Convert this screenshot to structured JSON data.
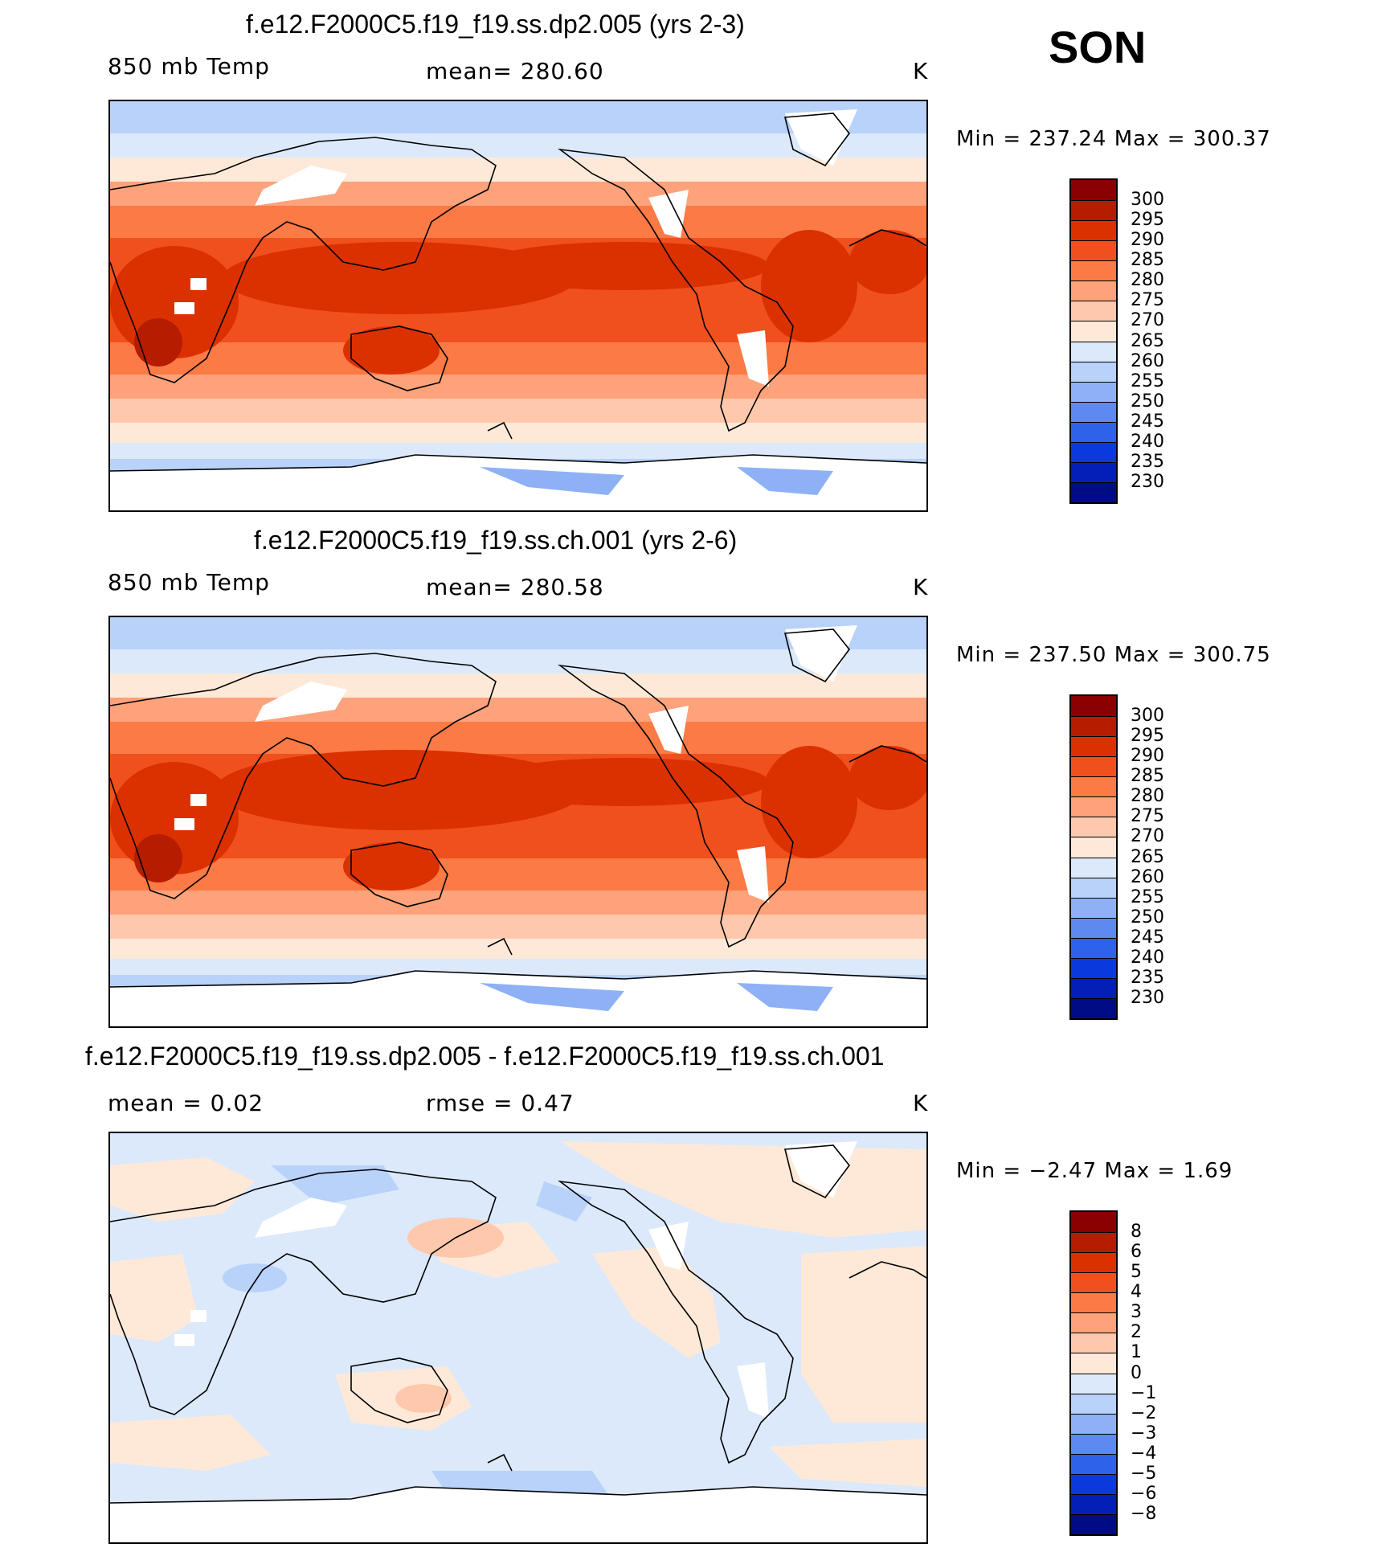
{
  "season": "SON",
  "panels": [
    {
      "title": "f.e12.F2000C5.f19_f19.ss.dp2.005 (yrs 2-3)",
      "left_label": "850 mb Temp",
      "center_label": "mean=  280.60",
      "units": "K",
      "minmax": "Min  =  237.24  Max  =  300.37",
      "type": "abs"
    },
    {
      "title": "f.e12.F2000C5.f19_f19.ss.ch.001 (yrs 2-6)",
      "left_label": "850 mb Temp",
      "center_label": "mean=  280.58",
      "units": "K",
      "minmax": "Min  =  237.50  Max  =  300.75",
      "type": "abs"
    },
    {
      "title": "f.e12.F2000C5.f19_f19.ss.dp2.005 - f.e12.F2000C5.f19_f19.ss.ch.001",
      "left_label": "mean  =     0.02",
      "center_label": "rmse  =     0.47",
      "units": "K",
      "minmax": "Min  =   −2.47  Max  =     1.69",
      "type": "diff"
    }
  ],
  "colorbars": {
    "abs": {
      "labels": [
        "300",
        "295",
        "290",
        "285",
        "280",
        "275",
        "270",
        "265",
        "260",
        "255",
        "250",
        "245",
        "240",
        "235",
        "230"
      ],
      "colors": [
        "#8b0000",
        "#b51c00",
        "#db3000",
        "#f0501e",
        "#fb7a46",
        "#fda27a",
        "#fec8ac",
        "#fee9d8",
        "#dbe9fb",
        "#b8d2fa",
        "#8eb1f6",
        "#5e89f1",
        "#2e62ea",
        "#0a3ade",
        "#031fb8",
        "#000c85"
      ]
    },
    "diff": {
      "labels": [
        "8",
        "6",
        "5",
        "4",
        "3",
        "2",
        "1",
        "0",
        "−1",
        "−2",
        "−3",
        "−4",
        "−5",
        "−6",
        "−8"
      ],
      "colors": [
        "#8b0000",
        "#b51c00",
        "#db3000",
        "#f0501e",
        "#fb7a46",
        "#fda27a",
        "#fec8ac",
        "#fee9d8",
        "#dbe9fb",
        "#b8d2fa",
        "#8eb1f6",
        "#5e89f1",
        "#2e62ea",
        "#0a3ade",
        "#031fb8",
        "#000c85"
      ]
    }
  }
}
